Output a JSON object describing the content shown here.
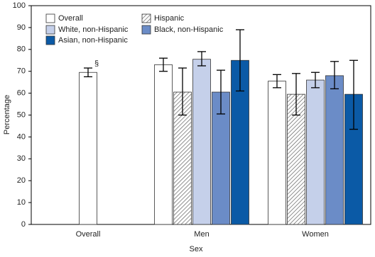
{
  "chart_data": {
    "type": "bar",
    "x_label": "Sex",
    "y_label": "Percentage",
    "annotation": "§",
    "categories": [
      "Overall",
      "Men",
      "Women"
    ],
    "series": [
      {
        "name": "Overall",
        "color": "#ffffff",
        "values": [
          69.5,
          73,
          65.5
        ],
        "ci_lower": [
          67.5,
          70,
          62.5
        ],
        "ci_upper": [
          71.5,
          76,
          68.5
        ]
      },
      {
        "name": "Hispanic",
        "color": "#ffffff",
        "pattern": "hatch",
        "values": [
          null,
          60.5,
          59.5
        ],
        "ci_lower": [
          null,
          50,
          50
        ],
        "ci_upper": [
          null,
          71.5,
          69
        ]
      },
      {
        "name": "White, non-Hispanic",
        "color": "#c5d0ea",
        "values": [
          null,
          75.5,
          66
        ],
        "ci_lower": [
          null,
          72.5,
          62.5
        ],
        "ci_upper": [
          null,
          79,
          69.5
        ]
      },
      {
        "name": "Black, non-Hispanic",
        "color": "#6b8cc7",
        "values": [
          null,
          60.5,
          68
        ],
        "ci_lower": [
          null,
          50.5,
          62
        ],
        "ci_upper": [
          null,
          70.5,
          74.5
        ]
      },
      {
        "name": "Asian, non-Hispanic",
        "color": "#0b5aa6",
        "values": [
          null,
          75,
          59.5
        ],
        "ci_lower": [
          null,
          61,
          43.5
        ],
        "ci_upper": [
          null,
          89,
          75
        ]
      }
    ],
    "ylim": [
      0,
      100
    ],
    "yticks": [
      0,
      10,
      20,
      30,
      40,
      50,
      60,
      70,
      80,
      90,
      100
    ]
  }
}
